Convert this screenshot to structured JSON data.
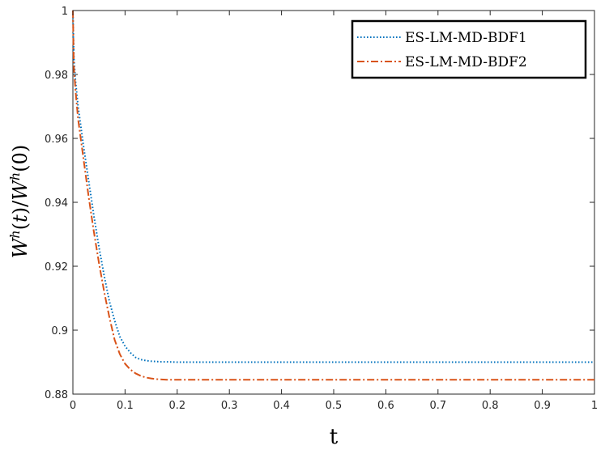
{
  "chart_data": {
    "type": "line",
    "title": "",
    "xlabel": "t",
    "ylabel": "W^h(t)/W^h(0)",
    "xlim": [
      0,
      1
    ],
    "ylim": [
      0.88,
      1
    ],
    "xticks": [
      "0",
      "0.1",
      "0.2",
      "0.3",
      "0.4",
      "0.5",
      "0.6",
      "0.7",
      "0.8",
      "0.9",
      "1"
    ],
    "yticks": [
      "0.88",
      "0.9",
      "0.92",
      "0.94",
      "0.96",
      "0.98",
      "1"
    ],
    "grid": false,
    "legend_position": "top-right",
    "series": [
      {
        "name": "ES-LM-MD-BDF1",
        "color": "#0072BD",
        "style": "dotted",
        "x": [
          0,
          0.001,
          0.002,
          0.005,
          0.01,
          0.02,
          0.03,
          0.04,
          0.05,
          0.06,
          0.07,
          0.08,
          0.09,
          0.1,
          0.11,
          0.12,
          0.13,
          0.14,
          0.15,
          0.16,
          0.17,
          0.18,
          0.2,
          0.22,
          0.25,
          0.3,
          0.4,
          0.5,
          0.6,
          0.7,
          0.8,
          0.9,
          1.0
        ],
        "values": [
          1.0,
          0.992,
          0.985,
          0.978,
          0.97,
          0.958,
          0.947,
          0.936,
          0.926,
          0.917,
          0.909,
          0.903,
          0.898,
          0.895,
          0.893,
          0.8915,
          0.8908,
          0.8905,
          0.8903,
          0.8902,
          0.8901,
          0.8901,
          0.89,
          0.89,
          0.89,
          0.89,
          0.89,
          0.89,
          0.89,
          0.89,
          0.89,
          0.89,
          0.89
        ]
      },
      {
        "name": "ES-LM-MD-BDF2",
        "color": "#D95319",
        "style": "dash-dot",
        "x": [
          0,
          0.001,
          0.002,
          0.005,
          0.01,
          0.02,
          0.03,
          0.04,
          0.05,
          0.06,
          0.07,
          0.08,
          0.09,
          0.1,
          0.11,
          0.12,
          0.13,
          0.14,
          0.15,
          0.16,
          0.17,
          0.18,
          0.2,
          0.22,
          0.25,
          0.3,
          0.4,
          0.5,
          0.6,
          0.7,
          0.8,
          0.9,
          1.0
        ],
        "values": [
          1.0,
          0.99,
          0.982,
          0.975,
          0.966,
          0.954,
          0.942,
          0.931,
          0.921,
          0.912,
          0.904,
          0.897,
          0.8925,
          0.8895,
          0.8877,
          0.8865,
          0.8857,
          0.8852,
          0.8849,
          0.8847,
          0.8846,
          0.8845,
          0.8845,
          0.8845,
          0.8845,
          0.8845,
          0.8845,
          0.8845,
          0.8845,
          0.8845,
          0.8845,
          0.8845,
          0.8845
        ]
      }
    ]
  }
}
